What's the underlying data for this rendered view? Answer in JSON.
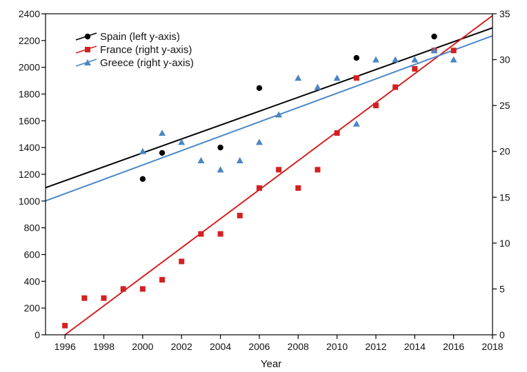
{
  "chart_data": {
    "type": "scatter",
    "title": "",
    "xlabel": "Year",
    "ylabel_left": "",
    "ylabel_right": "",
    "xlim": [
      1995,
      2018
    ],
    "ylim_left": [
      0,
      2400
    ],
    "ylim_right": [
      0,
      35
    ],
    "x_ticks": [
      "1996",
      "1998",
      "2000",
      "2002",
      "2004",
      "2006",
      "2008",
      "2010",
      "2012",
      "2014",
      "2016",
      "2018"
    ],
    "y_left_ticks": [
      "0",
      "200",
      "400",
      "600",
      "800",
      "1000",
      "1200",
      "1400",
      "1600",
      "1800",
      "2000",
      "2200",
      "2400"
    ],
    "y_right_ticks": [
      "0",
      "5",
      "10",
      "15",
      "20",
      "25",
      "30",
      "35"
    ],
    "grid": false,
    "legend_position": "top-left",
    "series": [
      {
        "name": "Spain (left y-axis)",
        "axis": "left",
        "marker": "circle",
        "color": "#000000",
        "x": [
          2000,
          2001,
          2004,
          2006,
          2011,
          2015
        ],
        "y": [
          1165,
          1360,
          1400,
          1845,
          2070,
          2230
        ],
        "trend": {
          "x": [
            1995,
            2018
          ],
          "y": [
            1100,
            2295
          ]
        }
      },
      {
        "name": "France (right y-axis)",
        "axis": "right",
        "marker": "square",
        "color": "#d42020",
        "x": [
          1996,
          1997,
          1998,
          1999,
          2000,
          2001,
          2002,
          2003,
          2004,
          2005,
          2006,
          2007,
          2008,
          2009,
          2010,
          2011,
          2012,
          2013,
          2014,
          2015,
          2016
        ],
        "y": [
          1,
          4,
          4,
          5,
          5,
          6,
          8,
          11,
          11,
          13,
          16,
          18,
          16,
          18,
          22,
          28,
          25,
          27,
          29,
          31,
          31
        ],
        "trend": {
          "x": [
            1996,
            2018
          ],
          "y": [
            0,
            34.8
          ]
        }
      },
      {
        "name": "Greece (right y-axis)",
        "axis": "right",
        "marker": "triangle",
        "color": "#4a86c5",
        "x": [
          2000,
          2001,
          2002,
          2003,
          2004,
          2005,
          2006,
          2007,
          2008,
          2009,
          2010,
          2011,
          2012,
          2013,
          2014,
          2015,
          2016
        ],
        "y": [
          20,
          22,
          21,
          19,
          18,
          19,
          21,
          24,
          28,
          27,
          28,
          23,
          30,
          30,
          30,
          31,
          30
        ],
        "trend": {
          "x": [
            1995,
            2018
          ],
          "y": [
            14.6,
            32.6
          ]
        }
      }
    ]
  }
}
